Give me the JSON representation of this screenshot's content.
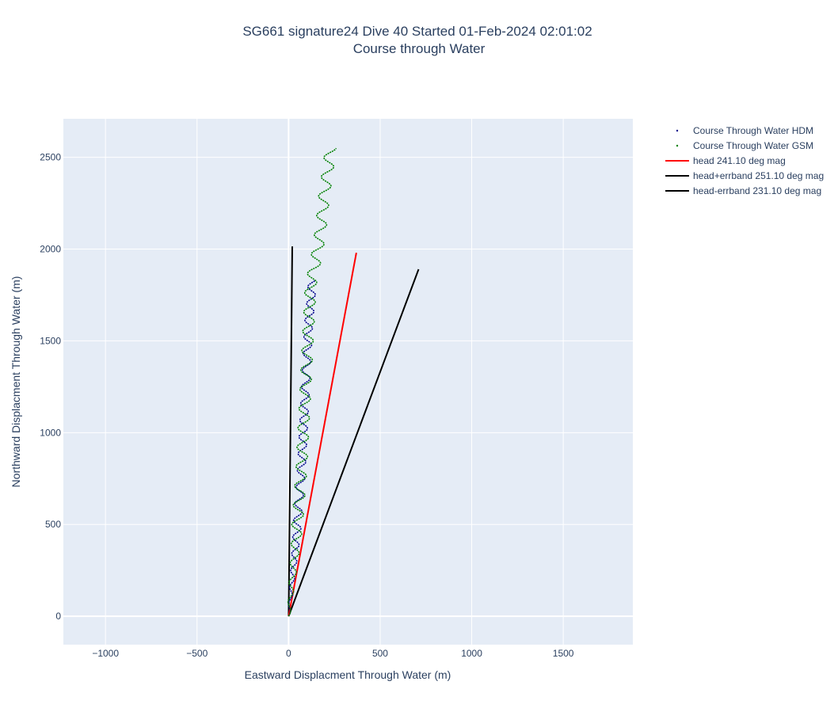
{
  "chart_data": {
    "type": "line",
    "title_line1": "SG661 signature24 Dive 40 Started 01-Feb-2024 02:01:02",
    "title_line2": "Course through Water",
    "xlabel": "Eastward Displacment Through Water (m)",
    "ylabel": "Northward Displacment Through Water (m)",
    "xlim": [
      -1230,
      1880
    ],
    "ylim": [
      -155,
      2710
    ],
    "x_ticks": [
      -1000,
      -500,
      0,
      500,
      1000,
      1500
    ],
    "x_tick_labels": [
      "−1000",
      "−500",
      "0",
      "500",
      "1000",
      "1500"
    ],
    "y_ticks": [
      0,
      500,
      1000,
      1500,
      2000,
      2500
    ],
    "y_tick_labels": [
      "0",
      "500",
      "1000",
      "1500",
      "2000",
      "2500"
    ],
    "grid": true,
    "legend_position": "top-right outside",
    "series": [
      {
        "name": "Course Through Water HDM",
        "kind": "wiggle",
        "color": "#00008b",
        "marker": "dot",
        "x": [
          0,
          20,
          40,
          55,
          70,
          80,
          90,
          100,
          110,
          120,
          130
        ],
        "y": [
          0,
          200,
          400,
          600,
          800,
          1000,
          1200,
          1400,
          1600,
          1700,
          1830
        ],
        "amplitude": 22,
        "cycles_per_100m": 1.1
      },
      {
        "name": "Course Through Water GSM",
        "kind": "wiggle",
        "color": "#008000",
        "marker": "dot",
        "x": [
          0,
          20,
          40,
          55,
          70,
          80,
          90,
          100,
          110,
          120,
          140,
          160,
          180,
          195,
          210,
          230
        ],
        "y": [
          0,
          200,
          400,
          600,
          800,
          1000,
          1200,
          1400,
          1600,
          1800,
          1900,
          2000,
          2150,
          2300,
          2400,
          2550
        ],
        "amplitude": 30,
        "cycles_per_100m": 0.95
      },
      {
        "name": "head 241.10 deg mag",
        "kind": "line",
        "color": "#ff0000",
        "x": [
          0,
          370
        ],
        "y": [
          0,
          1980
        ]
      },
      {
        "name": "head+errband 251.10 deg mag",
        "kind": "line",
        "color": "#000000",
        "x": [
          0,
          710
        ],
        "y": [
          0,
          1890
        ]
      },
      {
        "name": "head-errband 231.10 deg mag",
        "kind": "line",
        "color": "#000000",
        "x": [
          0,
          20
        ],
        "y": [
          0,
          2015
        ]
      }
    ]
  }
}
